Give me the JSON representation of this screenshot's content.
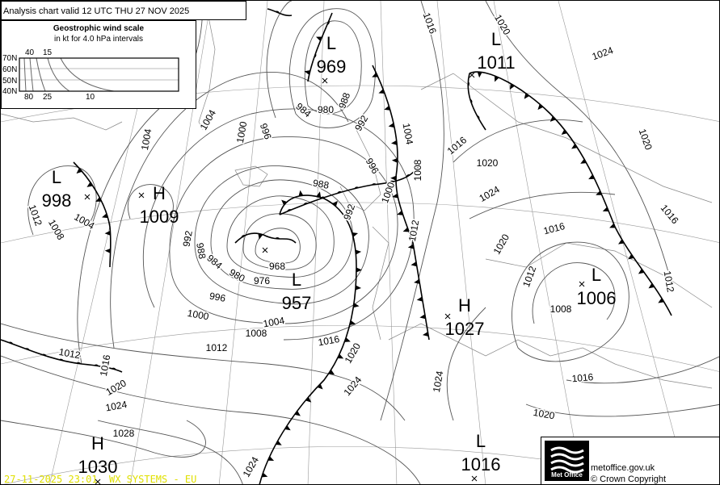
{
  "header": {
    "title": "Analysis chart valid 12 UTC THU 27  NOV 2025"
  },
  "wind_scale": {
    "title": "Geostrophic wind scale",
    "subtitle": "in kt for 4.0 hPa intervals",
    "latitudes": [
      "70N",
      "60N",
      "50N",
      "40N"
    ],
    "top_speeds": [
      "40",
      "15"
    ],
    "bottom_speeds": [
      "80",
      "25",
      "10"
    ]
  },
  "pressure_centres": [
    {
      "type": "L",
      "value": "969"
    },
    {
      "type": "L",
      "value": "1011"
    },
    {
      "type": "L",
      "value": "998"
    },
    {
      "type": "H",
      "value": "1009"
    },
    {
      "type": "L",
      "value": "957"
    },
    {
      "type": "H",
      "value": "1027"
    },
    {
      "type": "L",
      "value": "1006"
    },
    {
      "type": "H",
      "value": "1030"
    },
    {
      "type": "L",
      "value": "1016"
    }
  ],
  "isobar_labels": [
    "1016",
    "1020",
    "1024",
    "1020",
    "1016",
    "1012",
    "1016",
    "1020",
    "1024",
    "1020",
    "1016",
    "1012",
    "1008",
    "1016",
    "1020",
    "1024",
    "1024",
    "1020",
    "1016",
    "1012",
    "1008",
    "1004",
    "1000",
    "996",
    "992",
    "988",
    "992",
    "988",
    "984",
    "980",
    "996",
    "1000",
    "1004",
    "1004",
    "1008",
    "1004",
    "1012",
    "992",
    "988",
    "984",
    "980",
    "976",
    "968",
    "996",
    "1000",
    "1004",
    "1008",
    "1012",
    "1012",
    "1016",
    "1020",
    "1024",
    "1028",
    "1024"
  ],
  "footer": {
    "logo_text": "Met Office",
    "url": "metoffice.gov.uk",
    "copyright": "© Crown Copyright",
    "timestamp": "27-11-2025  23:01",
    "source": "WX SYSTEMS - EU"
  },
  "colors": {
    "stamp": "#e0e000",
    "front": "#000000",
    "isobar": "#555555",
    "grid": "#999999"
  }
}
